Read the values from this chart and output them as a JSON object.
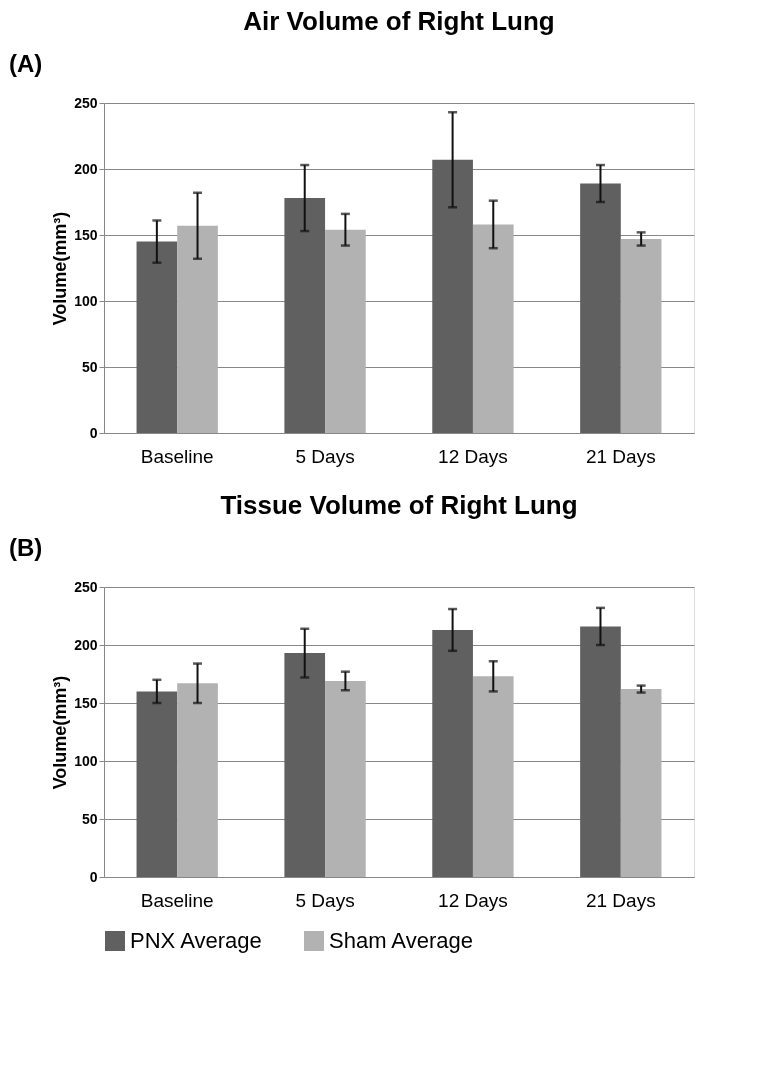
{
  "chart_data": [
    {
      "type": "bar",
      "title": "Air Volume of Right Lung",
      "ylabel": "Volume(mm³)",
      "annotations": [
        "(A)"
      ],
      "categories": [
        "Baseline",
        "5 Days",
        "12 Days",
        "21 Days"
      ],
      "series": [
        {
          "color": "#606060",
          "values": [
            145,
            178,
            207,
            189
          ],
          "errors": [
            16,
            25,
            36,
            14
          ]
        },
        {
          "color": "#b2b2b2",
          "values": [
            157,
            154,
            158,
            147
          ],
          "errors": [
            25,
            12,
            18,
            5
          ]
        }
      ],
      "ylim": [
        0,
        250
      ],
      "yticks": [
        0,
        50,
        100,
        150,
        200,
        250
      ],
      "grid": "y",
      "legend": false
    },
    {
      "type": "bar",
      "title": "Tissue Volume of Right Lung",
      "ylabel": "Volume(mm³)",
      "annotations": [
        "(B)"
      ],
      "categories": [
        "Baseline",
        "5 Days",
        "12 Days",
        "21 Days"
      ],
      "series": [
        {
          "name": "PNX Average",
          "color": "#606060",
          "values": [
            160,
            193,
            213,
            216
          ],
          "errors": [
            10,
            21,
            18,
            16
          ]
        },
        {
          "name": "Sham Average",
          "color": "#b2b2b2",
          "values": [
            167,
            169,
            173,
            162
          ],
          "errors": [
            17,
            8,
            13,
            3
          ]
        }
      ],
      "ylim": [
        0,
        250
      ],
      "yticks": [
        0,
        50,
        100,
        150,
        200,
        250
      ],
      "grid": "y",
      "legend": "bottom"
    }
  ]
}
